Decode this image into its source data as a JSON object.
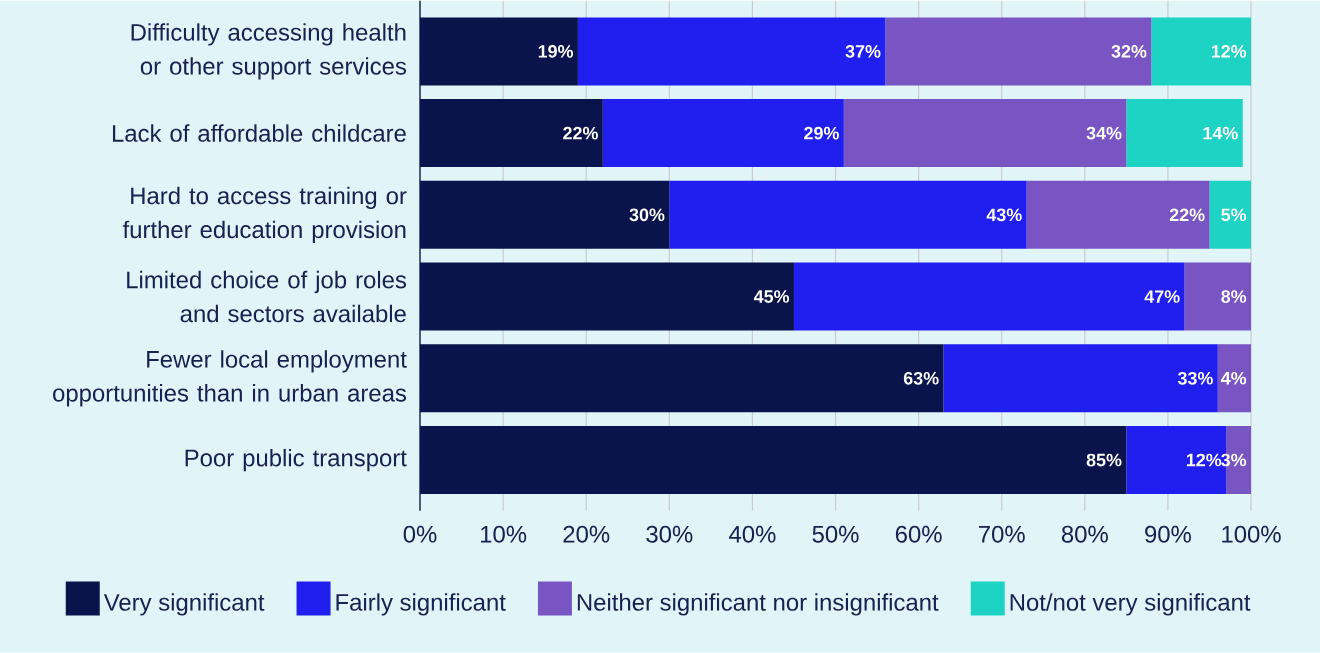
{
  "chart_data": {
    "type": "bar",
    "orientation": "horizontal",
    "stacked": true,
    "categories": [
      "Difficulty accessing health or other support services",
      "Lack of affordable childcare",
      "Hard to access training or further education provision",
      "Limited choice of job roles and sectors available",
      "Fewer local employment opportunities than in urban areas",
      "Poor public transport"
    ],
    "series": [
      {
        "name": "Very significant",
        "color": "#0b134d",
        "values": [
          19,
          22,
          30,
          45,
          63,
          85
        ],
        "value_labels": [
          "19%",
          "22%",
          "30%",
          "45%",
          "63%",
          "85%"
        ]
      },
      {
        "name": "Fairly significant",
        "color": "#211fef",
        "values": [
          37,
          29,
          43,
          47,
          33,
          12
        ],
        "value_labels": [
          "37%",
          "29%",
          "43%",
          "47%",
          "33%",
          "12%"
        ]
      },
      {
        "name": "Neither significant nor insignificant",
        "color": "#7955c4",
        "values": [
          32,
          34,
          22,
          8,
          4,
          3
        ],
        "value_labels": [
          "32%",
          "34%",
          "22%",
          "8%",
          "4%",
          "3%"
        ]
      },
      {
        "name": "Not/not very significant",
        "color": "#1dd3c4",
        "values": [
          12,
          14,
          5,
          null,
          null,
          null
        ],
        "value_labels": [
          "12%",
          "14%",
          "5%",
          null,
          null,
          null
        ]
      }
    ],
    "xlim": [
      0,
      100
    ],
    "xticks": [
      {
        "value": 0,
        "label": "0%"
      },
      {
        "value": 10,
        "label": "10%"
      },
      {
        "value": 20,
        "label": "20%"
      },
      {
        "value": 30,
        "label": "30%"
      },
      {
        "value": 40,
        "label": "40%"
      },
      {
        "value": 50,
        "label": "50%"
      },
      {
        "value": 60,
        "label": "60%"
      },
      {
        "value": 70,
        "label": "70%"
      },
      {
        "value": 80,
        "label": "80%"
      },
      {
        "value": 90,
        "label": "90%"
      },
      {
        "value": 100,
        "label": "100%"
      }
    ],
    "grid": "x",
    "legend": "bottom"
  }
}
